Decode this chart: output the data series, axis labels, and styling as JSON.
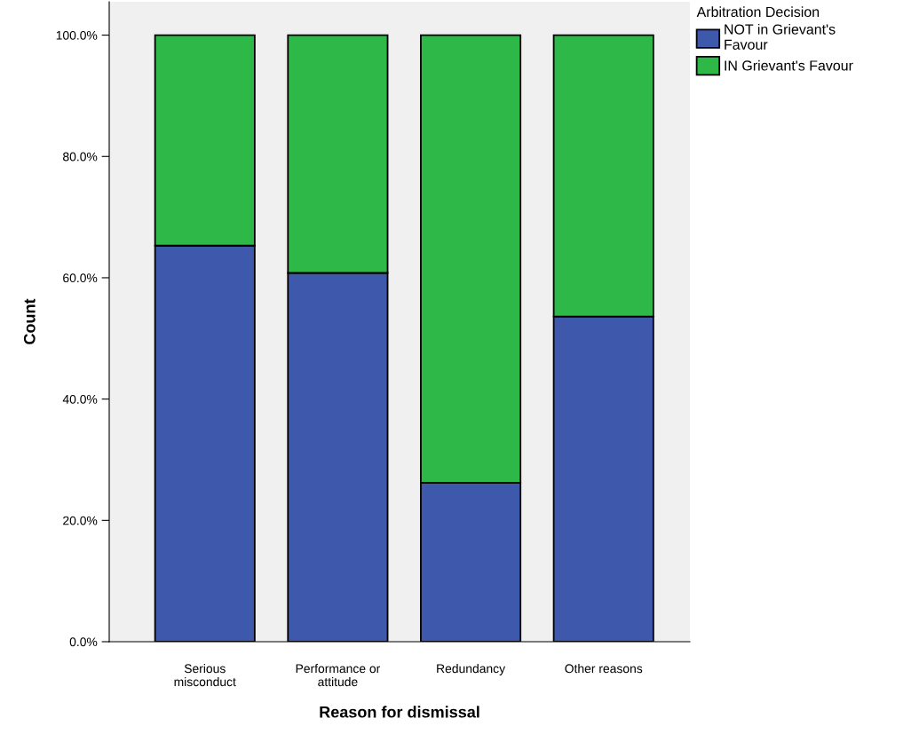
{
  "chart_data": {
    "type": "bar",
    "stacked": true,
    "xlabel": "Reason for dismissal",
    "ylabel": "Count",
    "legend_title": "Arbitration Decision",
    "categories": [
      "Serious\nmisconduct",
      "Performance or\nattitude",
      "Redundancy",
      "Other reasons"
    ],
    "series": [
      {
        "name": "NOT in Grievant's\nFavour",
        "color": "#3e58ac",
        "values": [
          65.3,
          60.8,
          26.2,
          53.6
        ]
      },
      {
        "name": "IN Grievant's Favour",
        "color": "#2eb848",
        "values": [
          34.7,
          39.2,
          73.8,
          46.4
        ]
      }
    ],
    "ylim": [
      0,
      105.5
    ],
    "yticks": [
      {
        "value": 0,
        "label": "0.0%"
      },
      {
        "value": 20,
        "label": "20.0%"
      },
      {
        "value": 40,
        "label": "40.0%"
      },
      {
        "value": 60,
        "label": "60.0%"
      },
      {
        "value": 80,
        "label": "80.0%"
      },
      {
        "value": 100,
        "label": "100.0%"
      }
    ],
    "grid": false,
    "legend": "top right"
  }
}
